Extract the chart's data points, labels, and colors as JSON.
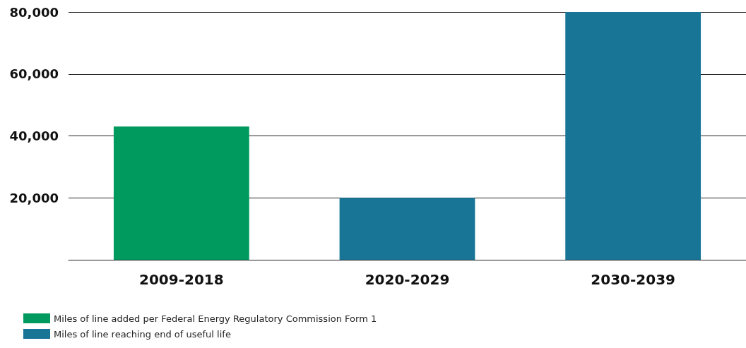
{
  "chart_data": {
    "type": "bar",
    "categories": [
      "2009-2018",
      "2020-2029",
      "2030-2039"
    ],
    "series": [
      {
        "name": "Miles of line added per Federal Energy Regulatory Commission Form 1",
        "color": "#009a5f",
        "values": [
          43000,
          null,
          null
        ]
      },
      {
        "name": "Miles of line reaching end of useful life",
        "color": "#187596",
        "values": [
          null,
          20000,
          80000
        ]
      }
    ],
    "ylim": [
      0,
      80000
    ],
    "yticks": [
      {
        "value": 20000,
        "label": "20,000"
      },
      {
        "value": 40000,
        "label": "40,000"
      },
      {
        "value": 60000,
        "label": "60,000"
      },
      {
        "value": 80000,
        "label": "80,000"
      }
    ],
    "grid": "y",
    "legend": "bottom left"
  }
}
